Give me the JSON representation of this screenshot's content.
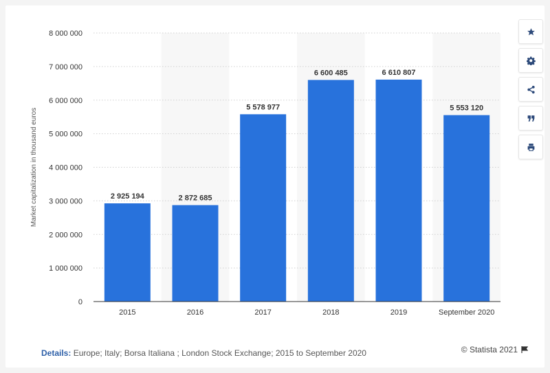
{
  "chart_data": {
    "type": "bar",
    "categories": [
      "2015",
      "2016",
      "2017",
      "2018",
      "2019",
      "September 2020"
    ],
    "values": [
      2925194,
      2872685,
      5578977,
      6600485,
      6610807,
      5553120
    ],
    "value_labels": [
      "2 925 194",
      "2 872 685",
      "5 578 977",
      "6 600 485",
      "6 610 807",
      "5 553 120"
    ],
    "ylabel": "Market capitalization in thousand euros",
    "xlabel": "",
    "title": "",
    "ylim": [
      0,
      8000000
    ],
    "yticks": [
      0,
      1000000,
      2000000,
      3000000,
      4000000,
      5000000,
      6000000,
      7000000,
      8000000
    ],
    "ytick_labels": [
      "0",
      "1 000 000",
      "2 000 000",
      "3 000 000",
      "4 000 000",
      "5 000 000",
      "6 000 000",
      "7 000 000",
      "8 000 000"
    ],
    "bar_color": "#2872dc",
    "alt_band_color": "#f7f7f7",
    "grid": true
  },
  "toolbar": {
    "buttons": [
      {
        "name": "favorite-button",
        "icon": "star-icon"
      },
      {
        "name": "settings-button",
        "icon": "gear-icon"
      },
      {
        "name": "share-button",
        "icon": "share-icon"
      },
      {
        "name": "cite-button",
        "icon": "quote-icon"
      },
      {
        "name": "print-button",
        "icon": "printer-icon"
      }
    ]
  },
  "footer": {
    "details_label": "Details:",
    "details_text": " Europe; Italy; Borsa Italiana ; London Stock Exchange; 2015 to September 2020",
    "credit": "© Statista 2021"
  }
}
